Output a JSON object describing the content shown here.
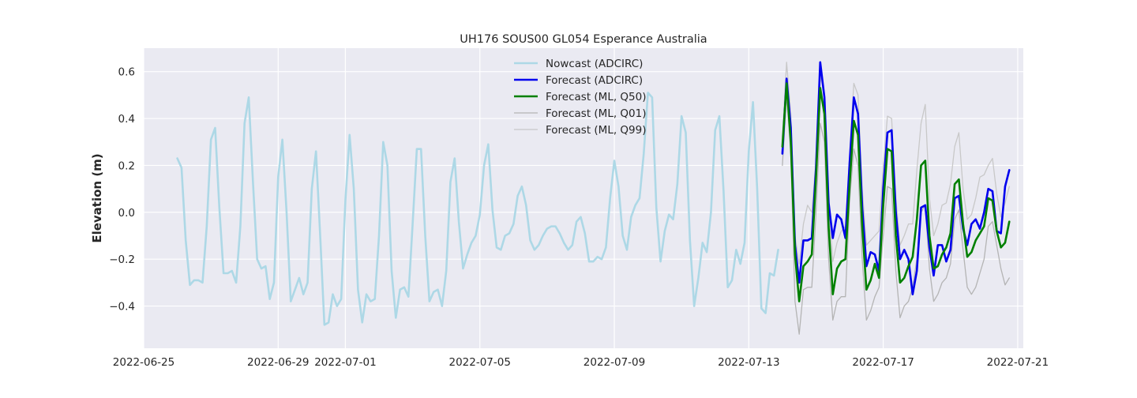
{
  "chart_data": {
    "type": "line",
    "title": "UH176 SOUS00 GL054 Esperance Australia",
    "xlabel": "",
    "ylabel": "Elevation (m)",
    "x_axis_type": "date",
    "xlim": [
      "2022-06-25T00:00",
      "2022-07-21T04:00"
    ],
    "ylim": [
      -0.58,
      0.7
    ],
    "x_ticks": [
      "2022-06-25",
      "2022-06-29",
      "2022-07-01",
      "2022-07-05",
      "2022-07-09",
      "2022-07-13",
      "2022-07-17",
      "2022-07-21"
    ],
    "y_ticks": [
      -0.4,
      -0.2,
      0.0,
      0.2,
      0.4,
      0.6
    ],
    "y_tick_labels": [
      "−0.4",
      "−0.2",
      "0.0",
      "0.2",
      "0.4",
      "0.6"
    ],
    "grid": true,
    "legend_position": "upper center",
    "series": [
      {
        "name": "Nowcast (ADCIRC)",
        "color": "#add8e6",
        "x": [
          "2022-06-26T00:00",
          "2022-06-26T03:00",
          "2022-06-26T06:00",
          "2022-06-26T09:00",
          "2022-06-26T12:00",
          "2022-06-26T15:00",
          "2022-06-26T18:00",
          "2022-06-26T21:00",
          "2022-06-27T00:00",
          "2022-06-27T03:00",
          "2022-06-27T06:00",
          "2022-06-27T09:00",
          "2022-06-27T12:00",
          "2022-06-27T15:00",
          "2022-06-27T18:00",
          "2022-06-27T21:00",
          "2022-06-28T00:00",
          "2022-06-28T03:00",
          "2022-06-28T06:00",
          "2022-06-28T09:00",
          "2022-06-28T12:00",
          "2022-06-28T15:00",
          "2022-06-28T18:00",
          "2022-06-28T21:00",
          "2022-06-29T00:00",
          "2022-06-29T03:00",
          "2022-06-29T06:00",
          "2022-06-29T09:00",
          "2022-06-29T12:00",
          "2022-06-29T15:00",
          "2022-06-29T18:00",
          "2022-06-29T21:00",
          "2022-06-30T00:00",
          "2022-06-30T03:00",
          "2022-06-30T06:00",
          "2022-06-30T09:00",
          "2022-06-30T12:00",
          "2022-06-30T15:00",
          "2022-06-30T18:00",
          "2022-06-30T21:00",
          "2022-07-01T00:00",
          "2022-07-01T03:00",
          "2022-07-01T06:00",
          "2022-07-01T09:00",
          "2022-07-01T12:00",
          "2022-07-01T15:00",
          "2022-07-01T18:00",
          "2022-07-01T21:00",
          "2022-07-02T00:00",
          "2022-07-02T03:00",
          "2022-07-02T06:00",
          "2022-07-02T09:00",
          "2022-07-02T12:00",
          "2022-07-02T15:00",
          "2022-07-02T18:00",
          "2022-07-02T21:00",
          "2022-07-03T00:00",
          "2022-07-03T03:00",
          "2022-07-03T06:00",
          "2022-07-03T09:00",
          "2022-07-03T12:00",
          "2022-07-03T15:00",
          "2022-07-03T18:00",
          "2022-07-03T21:00",
          "2022-07-04T00:00",
          "2022-07-04T03:00",
          "2022-07-04T06:00",
          "2022-07-04T09:00",
          "2022-07-04T12:00",
          "2022-07-04T15:00",
          "2022-07-04T18:00",
          "2022-07-04T21:00",
          "2022-07-05T00:00",
          "2022-07-05T03:00",
          "2022-07-05T06:00",
          "2022-07-05T09:00",
          "2022-07-05T12:00",
          "2022-07-05T15:00",
          "2022-07-05T18:00",
          "2022-07-05T21:00",
          "2022-07-06T00:00",
          "2022-07-06T03:00",
          "2022-07-06T06:00",
          "2022-07-06T09:00",
          "2022-07-06T12:00",
          "2022-07-06T15:00",
          "2022-07-06T18:00",
          "2022-07-06T21:00",
          "2022-07-07T00:00",
          "2022-07-07T03:00",
          "2022-07-07T06:00",
          "2022-07-07T09:00",
          "2022-07-07T12:00",
          "2022-07-07T15:00",
          "2022-07-07T18:00",
          "2022-07-07T21:00",
          "2022-07-08T00:00",
          "2022-07-08T03:00",
          "2022-07-08T06:00",
          "2022-07-08T09:00",
          "2022-07-08T12:00",
          "2022-07-08T15:00",
          "2022-07-08T18:00",
          "2022-07-08T21:00",
          "2022-07-09T00:00",
          "2022-07-09T03:00",
          "2022-07-09T06:00",
          "2022-07-09T09:00",
          "2022-07-09T12:00",
          "2022-07-09T15:00",
          "2022-07-09T18:00",
          "2022-07-09T21:00",
          "2022-07-10T00:00",
          "2022-07-10T03:00",
          "2022-07-10T06:00",
          "2022-07-10T09:00",
          "2022-07-10T12:00",
          "2022-07-10T15:00",
          "2022-07-10T18:00",
          "2022-07-10T21:00",
          "2022-07-11T00:00",
          "2022-07-11T03:00",
          "2022-07-11T06:00",
          "2022-07-11T09:00",
          "2022-07-11T12:00",
          "2022-07-11T15:00",
          "2022-07-11T18:00",
          "2022-07-11T21:00",
          "2022-07-12T00:00",
          "2022-07-12T03:00",
          "2022-07-12T06:00",
          "2022-07-12T09:00",
          "2022-07-12T12:00",
          "2022-07-12T15:00",
          "2022-07-12T18:00",
          "2022-07-12T21:00",
          "2022-07-13T00:00",
          "2022-07-13T03:00",
          "2022-07-13T06:00",
          "2022-07-13T09:00",
          "2022-07-13T12:00",
          "2022-07-13T15:00",
          "2022-07-13T18:00",
          "2022-07-13T21:00"
        ],
        "y": [
          0.23,
          0.19,
          -0.12,
          -0.31,
          -0.29,
          -0.29,
          -0.3,
          -0.06,
          0.31,
          0.36,
          0.02,
          -0.26,
          -0.26,
          -0.25,
          -0.3,
          -0.06,
          0.38,
          0.49,
          0.13,
          -0.2,
          -0.24,
          -0.23,
          -0.37,
          -0.3,
          0.15,
          0.31,
          0.0,
          -0.38,
          -0.33,
          -0.28,
          -0.35,
          -0.3,
          0.1,
          0.26,
          -0.1,
          -0.48,
          -0.47,
          -0.35,
          -0.4,
          -0.37,
          0.05,
          0.33,
          0.1,
          -0.33,
          -0.47,
          -0.35,
          -0.38,
          -0.37,
          -0.1,
          0.3,
          0.2,
          -0.25,
          -0.45,
          -0.33,
          -0.32,
          -0.36,
          -0.05,
          0.27,
          0.27,
          -0.1,
          -0.38,
          -0.34,
          -0.33,
          -0.4,
          -0.25,
          0.13,
          0.23,
          -0.04,
          -0.24,
          -0.18,
          -0.13,
          -0.1,
          -0.01,
          0.2,
          0.29,
          0.01,
          -0.15,
          -0.16,
          -0.1,
          -0.09,
          -0.05,
          0.07,
          0.11,
          0.03,
          -0.12,
          -0.16,
          -0.14,
          -0.1,
          -0.07,
          -0.06,
          -0.06,
          -0.09,
          -0.13,
          -0.16,
          -0.14,
          -0.04,
          -0.02,
          -0.09,
          -0.21,
          -0.21,
          -0.19,
          -0.2,
          -0.15,
          0.06,
          0.22,
          0.11,
          -0.1,
          -0.16,
          -0.02,
          0.03,
          0.06,
          0.25,
          0.51,
          0.49,
          0.02,
          -0.21,
          -0.08,
          -0.01,
          -0.03,
          0.12,
          0.41,
          0.34,
          -0.12,
          -0.4,
          -0.28,
          -0.13,
          -0.17,
          0.0,
          0.35,
          0.41,
          0.09,
          -0.32,
          -0.29,
          -0.16,
          -0.22,
          -0.13,
          0.26,
          0.47,
          0.1,
          -0.41,
          -0.43,
          -0.26,
          -0.27,
          -0.16
        ]
      },
      {
        "name": "Forecast (ADCIRC)",
        "color": "#0000ee",
        "x": [
          "2022-07-14T00:00",
          "2022-07-14T03:00",
          "2022-07-14T06:00",
          "2022-07-14T09:00",
          "2022-07-14T12:00",
          "2022-07-14T15:00",
          "2022-07-14T18:00",
          "2022-07-14T21:00",
          "2022-07-15T00:00",
          "2022-07-15T03:00",
          "2022-07-15T06:00",
          "2022-07-15T09:00",
          "2022-07-15T12:00",
          "2022-07-15T15:00",
          "2022-07-15T18:00",
          "2022-07-15T21:00",
          "2022-07-16T00:00",
          "2022-07-16T03:00",
          "2022-07-16T06:00",
          "2022-07-16T09:00",
          "2022-07-16T12:00",
          "2022-07-16T15:00",
          "2022-07-16T18:00",
          "2022-07-16T21:00",
          "2022-07-17T00:00",
          "2022-07-17T03:00",
          "2022-07-17T06:00",
          "2022-07-17T09:00",
          "2022-07-17T12:00",
          "2022-07-17T15:00",
          "2022-07-17T18:00",
          "2022-07-17T21:00",
          "2022-07-18T00:00",
          "2022-07-18T03:00",
          "2022-07-18T06:00",
          "2022-07-18T09:00",
          "2022-07-18T12:00",
          "2022-07-18T15:00",
          "2022-07-18T18:00",
          "2022-07-18T21:00",
          "2022-07-19T00:00",
          "2022-07-19T03:00",
          "2022-07-19T06:00",
          "2022-07-19T09:00",
          "2022-07-19T12:00",
          "2022-07-19T15:00",
          "2022-07-19T18:00",
          "2022-07-19T21:00",
          "2022-07-20T00:00",
          "2022-07-20T03:00",
          "2022-07-20T06:00",
          "2022-07-20T09:00",
          "2022-07-20T12:00",
          "2022-07-20T15:00",
          "2022-07-20T18:00"
        ],
        "y": [
          0.25,
          0.57,
          0.36,
          -0.14,
          -0.3,
          -0.12,
          -0.12,
          -0.11,
          0.19,
          0.64,
          0.49,
          0.04,
          -0.11,
          -0.01,
          -0.03,
          -0.11,
          0.21,
          0.49,
          0.42,
          0.02,
          -0.23,
          -0.17,
          -0.18,
          -0.25,
          0.1,
          0.34,
          0.35,
          0.0,
          -0.2,
          -0.16,
          -0.2,
          -0.35,
          -0.25,
          0.02,
          0.03,
          -0.15,
          -0.27,
          -0.14,
          -0.14,
          -0.21,
          -0.16,
          0.06,
          0.07,
          -0.07,
          -0.14,
          -0.05,
          -0.03,
          -0.07,
          0.0,
          0.1,
          0.09,
          -0.08,
          -0.09,
          0.11,
          0.18
        ]
      },
      {
        "name": "Forecast (ML, Q50)",
        "color": "#008000",
        "x": [
          "2022-07-14T00:00",
          "2022-07-14T03:00",
          "2022-07-14T06:00",
          "2022-07-14T09:00",
          "2022-07-14T12:00",
          "2022-07-14T15:00",
          "2022-07-14T18:00",
          "2022-07-14T21:00",
          "2022-07-15T00:00",
          "2022-07-15T03:00",
          "2022-07-15T06:00",
          "2022-07-15T09:00",
          "2022-07-15T12:00",
          "2022-07-15T15:00",
          "2022-07-15T18:00",
          "2022-07-15T21:00",
          "2022-07-16T00:00",
          "2022-07-16T03:00",
          "2022-07-16T06:00",
          "2022-07-16T09:00",
          "2022-07-16T12:00",
          "2022-07-16T15:00",
          "2022-07-16T18:00",
          "2022-07-16T21:00",
          "2022-07-17T00:00",
          "2022-07-17T03:00",
          "2022-07-17T06:00",
          "2022-07-17T09:00",
          "2022-07-17T12:00",
          "2022-07-17T15:00",
          "2022-07-17T18:00",
          "2022-07-17T21:00",
          "2022-07-18T00:00",
          "2022-07-18T03:00",
          "2022-07-18T06:00",
          "2022-07-18T09:00",
          "2022-07-18T12:00",
          "2022-07-18T15:00",
          "2022-07-18T18:00",
          "2022-07-18T21:00",
          "2022-07-19T00:00",
          "2022-07-19T03:00",
          "2022-07-19T06:00",
          "2022-07-19T09:00",
          "2022-07-19T12:00",
          "2022-07-19T15:00",
          "2022-07-19T18:00",
          "2022-07-19T21:00",
          "2022-07-20T00:00",
          "2022-07-20T03:00",
          "2022-07-20T06:00",
          "2022-07-20T09:00",
          "2022-07-20T12:00",
          "2022-07-20T15:00",
          "2022-07-20T18:00"
        ],
        "y": [
          0.28,
          0.55,
          0.3,
          -0.18,
          -0.38,
          -0.23,
          -0.21,
          -0.18,
          0.15,
          0.53,
          0.42,
          -0.06,
          -0.35,
          -0.24,
          -0.21,
          -0.2,
          0.12,
          0.39,
          0.33,
          -0.06,
          -0.33,
          -0.29,
          -0.22,
          -0.28,
          0.03,
          0.27,
          0.26,
          -0.1,
          -0.3,
          -0.28,
          -0.23,
          -0.19,
          -0.03,
          0.2,
          0.22,
          -0.1,
          -0.24,
          -0.23,
          -0.18,
          -0.15,
          -0.09,
          0.12,
          0.14,
          -0.05,
          -0.19,
          -0.17,
          -0.12,
          -0.09,
          -0.06,
          0.06,
          0.05,
          -0.08,
          -0.15,
          -0.13,
          -0.04
        ]
      },
      {
        "name": "Forecast (ML, Q01)",
        "color": "#b4b4b4",
        "x": [
          "2022-07-14T00:00",
          "2022-07-14T03:00",
          "2022-07-14T06:00",
          "2022-07-14T09:00",
          "2022-07-14T12:00",
          "2022-07-14T15:00",
          "2022-07-14T18:00",
          "2022-07-14T21:00",
          "2022-07-15T00:00",
          "2022-07-15T03:00",
          "2022-07-15T06:00",
          "2022-07-15T09:00",
          "2022-07-15T12:00",
          "2022-07-15T15:00",
          "2022-07-15T18:00",
          "2022-07-15T21:00",
          "2022-07-16T00:00",
          "2022-07-16T03:00",
          "2022-07-16T06:00",
          "2022-07-16T09:00",
          "2022-07-16T12:00",
          "2022-07-16T15:00",
          "2022-07-16T18:00",
          "2022-07-16T21:00",
          "2022-07-17T00:00",
          "2022-07-17T03:00",
          "2022-07-17T06:00",
          "2022-07-17T09:00",
          "2022-07-17T12:00",
          "2022-07-17T15:00",
          "2022-07-17T18:00",
          "2022-07-17T21:00",
          "2022-07-18T00:00",
          "2022-07-18T03:00",
          "2022-07-18T06:00",
          "2022-07-18T09:00",
          "2022-07-18T12:00",
          "2022-07-18T15:00",
          "2022-07-18T18:00",
          "2022-07-18T21:00",
          "2022-07-19T00:00",
          "2022-07-19T03:00",
          "2022-07-19T06:00",
          "2022-07-19T09:00",
          "2022-07-19T12:00",
          "2022-07-19T15:00",
          "2022-07-19T18:00",
          "2022-07-19T21:00",
          "2022-07-20T00:00",
          "2022-07-20T03:00",
          "2022-07-20T06:00",
          "2022-07-20T09:00",
          "2022-07-20T12:00",
          "2022-07-20T15:00",
          "2022-07-20T18:00"
        ],
        "y": [
          0.2,
          0.5,
          0.25,
          -0.38,
          -0.52,
          -0.33,
          -0.32,
          -0.32,
          0.0,
          0.38,
          0.3,
          -0.2,
          -0.46,
          -0.38,
          -0.36,
          -0.36,
          0.05,
          0.27,
          0.2,
          -0.2,
          -0.46,
          -0.42,
          -0.36,
          -0.32,
          -0.1,
          0.11,
          0.1,
          -0.25,
          -0.45,
          -0.4,
          -0.38,
          -0.32,
          -0.2,
          0.0,
          0.03,
          -0.24,
          -0.38,
          -0.35,
          -0.3,
          -0.28,
          -0.22,
          -0.03,
          0.01,
          -0.16,
          -0.32,
          -0.35,
          -0.32,
          -0.26,
          -0.2,
          -0.06,
          -0.04,
          -0.14,
          -0.24,
          -0.31,
          -0.28
        ]
      },
      {
        "name": "Forecast (ML, Q99)",
        "color": "#c8c8c8",
        "x": [
          "2022-07-14T00:00",
          "2022-07-14T03:00",
          "2022-07-14T06:00",
          "2022-07-14T09:00",
          "2022-07-14T12:00",
          "2022-07-14T15:00",
          "2022-07-14T18:00",
          "2022-07-14T21:00",
          "2022-07-15T00:00",
          "2022-07-15T03:00",
          "2022-07-15T06:00",
          "2022-07-15T09:00",
          "2022-07-15T12:00",
          "2022-07-15T15:00",
          "2022-07-15T18:00",
          "2022-07-15T21:00",
          "2022-07-16T00:00",
          "2022-07-16T03:00",
          "2022-07-16T06:00",
          "2022-07-16T09:00",
          "2022-07-16T12:00",
          "2022-07-16T15:00",
          "2022-07-16T18:00",
          "2022-07-16T21:00",
          "2022-07-17T00:00",
          "2022-07-17T03:00",
          "2022-07-17T06:00",
          "2022-07-17T09:00",
          "2022-07-17T12:00",
          "2022-07-17T15:00",
          "2022-07-17T18:00",
          "2022-07-17T21:00",
          "2022-07-18T00:00",
          "2022-07-18T03:00",
          "2022-07-18T06:00",
          "2022-07-18T09:00",
          "2022-07-18T12:00",
          "2022-07-18T15:00",
          "2022-07-18T18:00",
          "2022-07-18T21:00",
          "2022-07-19T00:00",
          "2022-07-19T03:00",
          "2022-07-19T06:00",
          "2022-07-19T09:00",
          "2022-07-19T12:00",
          "2022-07-19T15:00",
          "2022-07-19T18:00",
          "2022-07-19T21:00",
          "2022-07-20T00:00",
          "2022-07-20T03:00",
          "2022-07-20T06:00",
          "2022-07-20T09:00",
          "2022-07-20T12:00",
          "2022-07-20T15:00",
          "2022-07-20T18:00"
        ],
        "y": [
          0.32,
          0.64,
          0.42,
          -0.1,
          -0.22,
          -0.05,
          0.03,
          0.0,
          0.22,
          0.58,
          0.5,
          0.05,
          -0.21,
          -0.13,
          -0.08,
          -0.06,
          0.25,
          0.55,
          0.5,
          0.1,
          -0.14,
          -0.12,
          -0.1,
          -0.08,
          0.2,
          0.41,
          0.4,
          0.06,
          -0.14,
          -0.1,
          -0.05,
          -0.05,
          0.18,
          0.38,
          0.46,
          0.06,
          -0.1,
          -0.05,
          0.03,
          0.04,
          0.12,
          0.28,
          0.34,
          0.1,
          -0.03,
          -0.01,
          0.06,
          0.15,
          0.16,
          0.2,
          0.23,
          0.08,
          -0.02,
          0.04,
          0.11
        ]
      }
    ]
  }
}
